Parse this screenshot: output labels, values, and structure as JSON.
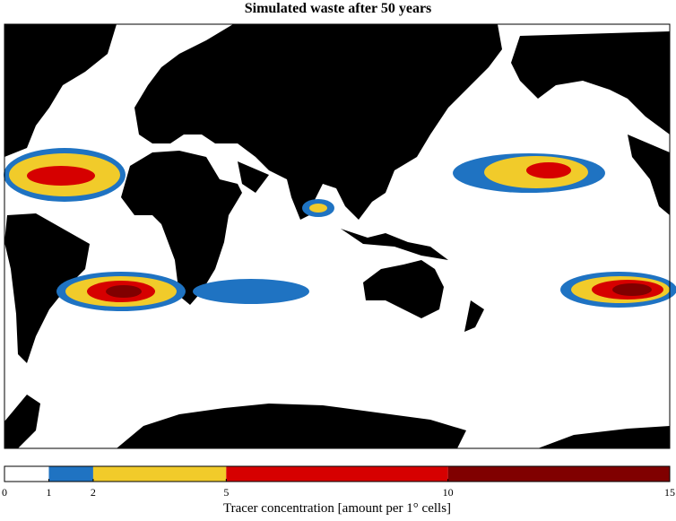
{
  "title": "Simulated waste after 50 years",
  "colorbar": {
    "ticks": [
      0,
      1,
      2,
      5,
      10,
      15
    ],
    "colors": [
      "#ffffff",
      "#1f73c2",
      "#f1cb2a",
      "#d60000",
      "#800000"
    ],
    "label": "Tracer concentration [amount per 1° cells]"
  }
}
